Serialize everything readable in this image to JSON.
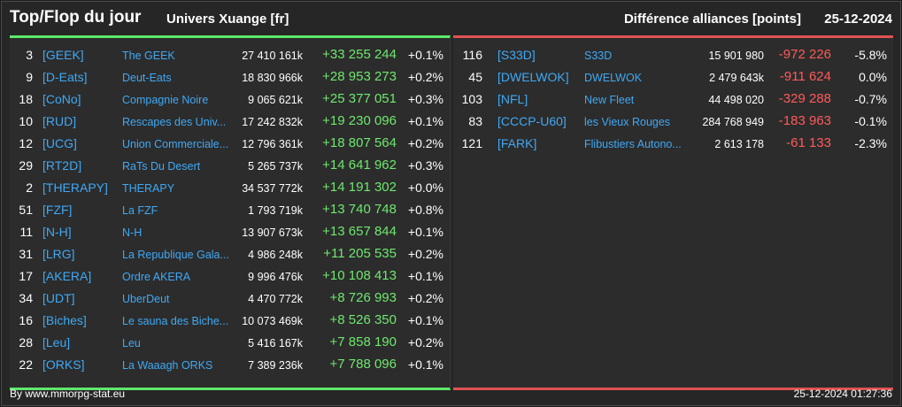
{
  "header": {
    "title": "Top/Flop du jour",
    "subtitle": "Univers Xuange [fr]",
    "right_title": "Différence alliances [points]",
    "date": "25-12-2024"
  },
  "colors": {
    "gain": "#6ee86e",
    "loss": "#ff5a5a",
    "link": "#3fa9f5",
    "top_accent": "#5ee86a",
    "flop_accent": "#e05252"
  },
  "top": [
    {
      "rank": "3",
      "tag": "[GEEK]",
      "name": "The GEEK",
      "points": "27 410 161k",
      "diff": "+33 255 244",
      "pct": "+0.1%"
    },
    {
      "rank": "9",
      "tag": "[D-Eats]",
      "name": "Deut-Eats",
      "points": "18 830 966k",
      "diff": "+28 953 273",
      "pct": "+0.2%"
    },
    {
      "rank": "18",
      "tag": "[CoNo]",
      "name": "Compagnie Noire",
      "points": "9 065 621k",
      "diff": "+25 377 051",
      "pct": "+0.3%"
    },
    {
      "rank": "10",
      "tag": "[RUD]",
      "name": "Rescapes des Univ...",
      "points": "17 242 832k",
      "diff": "+19 230 096",
      "pct": "+0.1%"
    },
    {
      "rank": "12",
      "tag": "[UCG]",
      "name": "Union Commerciale...",
      "points": "12 796 361k",
      "diff": "+18 807 564",
      "pct": "+0.2%"
    },
    {
      "rank": "29",
      "tag": "[RT2D]",
      "name": "RaTs Du Desert",
      "points": "5 265 737k",
      "diff": "+14 641 962",
      "pct": "+0.3%"
    },
    {
      "rank": "2",
      "tag": "[THERAPY]",
      "name": "THERAPY",
      "points": "34 537 772k",
      "diff": "+14 191 302",
      "pct": "+0.0%"
    },
    {
      "rank": "51",
      "tag": "[FZF]",
      "name": "La FZF",
      "points": "1 793 719k",
      "diff": "+13 740 748",
      "pct": "+0.8%"
    },
    {
      "rank": "11",
      "tag": "[N-H]",
      "name": "N-H",
      "points": "13 907 673k",
      "diff": "+13 657 844",
      "pct": "+0.1%"
    },
    {
      "rank": "31",
      "tag": "[LRG]",
      "name": "La Republique Gala...",
      "points": "4 986 248k",
      "diff": "+11 205 535",
      "pct": "+0.2%"
    },
    {
      "rank": "17",
      "tag": "[AKERA]",
      "name": "Ordre AKERA",
      "points": "9 996 476k",
      "diff": "+10 108 413",
      "pct": "+0.1%"
    },
    {
      "rank": "34",
      "tag": "[UDT]",
      "name": "UberDeut",
      "points": "4 470 772k",
      "diff": "+8 726 993",
      "pct": "+0.2%"
    },
    {
      "rank": "16",
      "tag": "[Biches]",
      "name": "Le sauna des Biche...",
      "points": "10 073 469k",
      "diff": "+8 526 350",
      "pct": "+0.1%"
    },
    {
      "rank": "28",
      "tag": "[Leu]",
      "name": "Leu",
      "points": "5 416 167k",
      "diff": "+7 858 190",
      "pct": "+0.2%"
    },
    {
      "rank": "22",
      "tag": "[ORKS]",
      "name": "La Waaagh ORKS",
      "points": "7 389 236k",
      "diff": "+7 788 096",
      "pct": "+0.1%"
    }
  ],
  "flop": [
    {
      "rank": "116",
      "tag": "[S33D]",
      "name": "S33D",
      "points": "15 901 980",
      "diff": "-972 226",
      "pct": "-5.8%"
    },
    {
      "rank": "45",
      "tag": "[DWELWOK]",
      "name": "DWELWOK",
      "points": "2 479 643k",
      "diff": "-911 624",
      "pct": "0.0%"
    },
    {
      "rank": "103",
      "tag": "[NFL]",
      "name": "New Fleet",
      "points": "44 498 020",
      "diff": "-329 288",
      "pct": "-0.7%"
    },
    {
      "rank": "83",
      "tag": "[CCCP-U60]",
      "name": "les Vieux Rouges",
      "points": "284 768 949",
      "diff": "-183 963",
      "pct": "-0.1%"
    },
    {
      "rank": "121",
      "tag": "[FARK]",
      "name": "Flibustiers Autono...",
      "points": "2 613 178",
      "diff": "-61 133",
      "pct": "-2.3%"
    }
  ],
  "footer": {
    "source": "By www.mmorpg-stat.eu",
    "timestamp": "25-12-2024 01:27:36"
  }
}
